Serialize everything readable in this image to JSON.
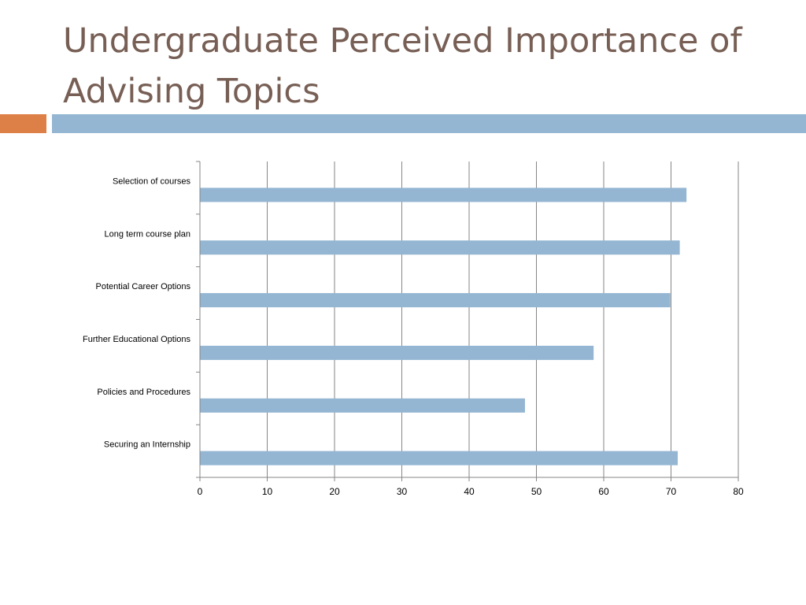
{
  "slide": {
    "title": "Undergraduate Perceived Importance of Advising Topics"
  },
  "colors": {
    "title": "#775f55",
    "accent_orange": "#dd8047",
    "accent_blue": "#94b6d2",
    "bar": "#94b6d2",
    "gridline": "#868686"
  },
  "chart_data": {
    "type": "bar",
    "orientation": "horizontal",
    "title": "",
    "xlabel": "",
    "ylabel": "",
    "categories": [
      "Selection of courses",
      "Long term course plan",
      "Potential Career Options",
      "Further Educational Options",
      "Policies and Procedures",
      "Securing an Internship"
    ],
    "values": [
      72.3,
      71.3,
      69.9,
      58.5,
      48.3,
      71.0
    ],
    "xlim": [
      0,
      80
    ],
    "xticks": [
      "0",
      "10",
      "20",
      "30",
      "40",
      "50",
      "60",
      "70",
      "80"
    ],
    "grid": true,
    "legend": "none"
  }
}
